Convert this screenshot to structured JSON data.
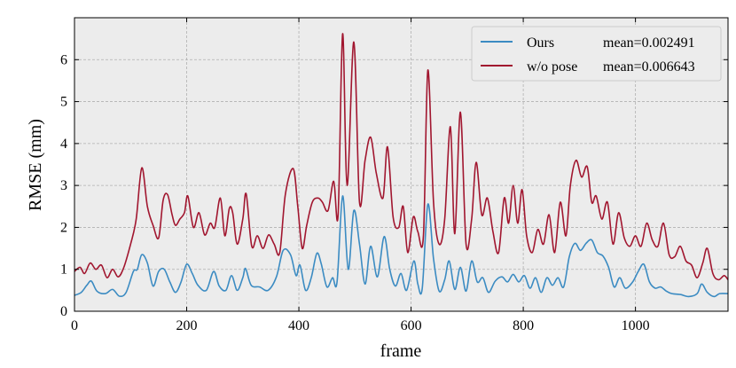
{
  "chart_data": {
    "type": "line",
    "xlabel": "frame",
    "ylabel": "RMSE (mm)",
    "xlim": [
      0,
      1165
    ],
    "ylim": [
      0,
      7
    ],
    "xticks": [
      0,
      200,
      400,
      600,
      800,
      1000
    ],
    "yticks": [
      0,
      1,
      2,
      3,
      4,
      5,
      6
    ],
    "grid": true,
    "legend_position": "top-right",
    "background": "#ececec",
    "series": [
      {
        "name": "Ours",
        "mean_label": "mean=0.002491",
        "color": "#3b8bc2",
        "points": [
          [
            0,
            0.38
          ],
          [
            12,
            0.45
          ],
          [
            22,
            0.62
          ],
          [
            30,
            0.72
          ],
          [
            40,
            0.48
          ],
          [
            55,
            0.42
          ],
          [
            68,
            0.52
          ],
          [
            80,
            0.36
          ],
          [
            92,
            0.45
          ],
          [
            105,
            0.95
          ],
          [
            112,
            1.0
          ],
          [
            120,
            1.35
          ],
          [
            130,
            1.15
          ],
          [
            140,
            0.6
          ],
          [
            150,
            0.95
          ],
          [
            160,
            1.0
          ],
          [
            170,
            0.7
          ],
          [
            180,
            0.45
          ],
          [
            190,
            0.7
          ],
          [
            200,
            1.12
          ],
          [
            210,
            0.9
          ],
          [
            220,
            0.62
          ],
          [
            235,
            0.5
          ],
          [
            248,
            0.95
          ],
          [
            258,
            0.6
          ],
          [
            270,
            0.5
          ],
          [
            280,
            0.85
          ],
          [
            290,
            0.5
          ],
          [
            300,
            0.8
          ],
          [
            305,
            1.02
          ],
          [
            315,
            0.62
          ],
          [
            330,
            0.58
          ],
          [
            345,
            0.5
          ],
          [
            360,
            0.82
          ],
          [
            372,
            1.45
          ],
          [
            385,
            1.35
          ],
          [
            395,
            0.85
          ],
          [
            402,
            1.1
          ],
          [
            412,
            0.5
          ],
          [
            422,
            0.8
          ],
          [
            432,
            1.38
          ],
          [
            440,
            1.12
          ],
          [
            450,
            0.58
          ],
          [
            460,
            0.8
          ],
          [
            468,
            0.7
          ],
          [
            478,
            2.75
          ],
          [
            488,
            1.0
          ],
          [
            498,
            2.4
          ],
          [
            508,
            1.6
          ],
          [
            518,
            0.65
          ],
          [
            528,
            1.55
          ],
          [
            540,
            0.82
          ],
          [
            552,
            1.78
          ],
          [
            562,
            1.0
          ],
          [
            572,
            0.6
          ],
          [
            582,
            0.9
          ],
          [
            592,
            0.5
          ],
          [
            605,
            1.2
          ],
          [
            612,
            0.65
          ],
          [
            620,
            0.55
          ],
          [
            630,
            2.55
          ],
          [
            640,
            1.25
          ],
          [
            650,
            0.48
          ],
          [
            660,
            0.75
          ],
          [
            668,
            1.2
          ],
          [
            678,
            0.52
          ],
          [
            688,
            1.05
          ],
          [
            698,
            0.48
          ],
          [
            708,
            1.2
          ],
          [
            718,
            0.7
          ],
          [
            728,
            0.8
          ],
          [
            738,
            0.45
          ],
          [
            750,
            0.72
          ],
          [
            762,
            0.82
          ],
          [
            772,
            0.7
          ],
          [
            782,
            0.88
          ],
          [
            792,
            0.7
          ],
          [
            802,
            0.85
          ],
          [
            812,
            0.55
          ],
          [
            822,
            0.8
          ],
          [
            832,
            0.45
          ],
          [
            842,
            0.8
          ],
          [
            852,
            0.62
          ],
          [
            862,
            0.8
          ],
          [
            872,
            0.58
          ],
          [
            882,
            1.3
          ],
          [
            892,
            1.62
          ],
          [
            902,
            1.45
          ],
          [
            912,
            1.62
          ],
          [
            922,
            1.7
          ],
          [
            932,
            1.4
          ],
          [
            942,
            1.32
          ],
          [
            952,
            1.05
          ],
          [
            962,
            0.58
          ],
          [
            972,
            0.8
          ],
          [
            982,
            0.55
          ],
          [
            995,
            0.7
          ],
          [
            1005,
            0.95
          ],
          [
            1015,
            1.12
          ],
          [
            1025,
            0.7
          ],
          [
            1035,
            0.55
          ],
          [
            1045,
            0.58
          ],
          [
            1055,
            0.48
          ],
          [
            1065,
            0.42
          ],
          [
            1080,
            0.4
          ],
          [
            1095,
            0.35
          ],
          [
            1110,
            0.42
          ],
          [
            1118,
            0.65
          ],
          [
            1128,
            0.45
          ],
          [
            1140,
            0.35
          ],
          [
            1150,
            0.42
          ],
          [
            1165,
            0.42
          ]
        ]
      },
      {
        "name": "w/o pose",
        "mean_label": "mean=0.006643",
        "color": "#a1162f",
        "points": [
          [
            0,
            0.95
          ],
          [
            10,
            1.05
          ],
          [
            18,
            0.9
          ],
          [
            28,
            1.15
          ],
          [
            38,
            1.0
          ],
          [
            48,
            1.1
          ],
          [
            58,
            0.8
          ],
          [
            68,
            1.0
          ],
          [
            78,
            0.82
          ],
          [
            88,
            1.05
          ],
          [
            100,
            1.6
          ],
          [
            110,
            2.2
          ],
          [
            120,
            3.42
          ],
          [
            130,
            2.5
          ],
          [
            140,
            2.05
          ],
          [
            150,
            1.75
          ],
          [
            158,
            2.65
          ],
          [
            166,
            2.78
          ],
          [
            174,
            2.3
          ],
          [
            180,
            2.05
          ],
          [
            188,
            2.2
          ],
          [
            196,
            2.35
          ],
          [
            202,
            2.75
          ],
          [
            212,
            2.0
          ],
          [
            222,
            2.35
          ],
          [
            232,
            1.82
          ],
          [
            242,
            2.1
          ],
          [
            250,
            2.0
          ],
          [
            260,
            2.7
          ],
          [
            268,
            1.8
          ],
          [
            276,
            2.45
          ],
          [
            282,
            2.35
          ],
          [
            290,
            1.6
          ],
          [
            300,
            2.2
          ],
          [
            306,
            2.8
          ],
          [
            316,
            1.55
          ],
          [
            326,
            1.8
          ],
          [
            336,
            1.5
          ],
          [
            346,
            1.82
          ],
          [
            356,
            1.6
          ],
          [
            366,
            1.4
          ],
          [
            376,
            2.8
          ],
          [
            390,
            3.4
          ],
          [
            398,
            2.5
          ],
          [
            406,
            1.5
          ],
          [
            414,
            2.05
          ],
          [
            424,
            2.6
          ],
          [
            434,
            2.7
          ],
          [
            442,
            2.6
          ],
          [
            452,
            2.4
          ],
          [
            462,
            3.1
          ],
          [
            470,
            2.3
          ],
          [
            478,
            6.62
          ],
          [
            486,
            3.0
          ],
          [
            498,
            6.42
          ],
          [
            508,
            2.6
          ],
          [
            518,
            3.6
          ],
          [
            528,
            4.15
          ],
          [
            538,
            3.3
          ],
          [
            550,
            2.7
          ],
          [
            558,
            3.92
          ],
          [
            568,
            2.25
          ],
          [
            578,
            2.0
          ],
          [
            586,
            2.5
          ],
          [
            594,
            1.4
          ],
          [
            604,
            2.25
          ],
          [
            612,
            1.9
          ],
          [
            622,
            1.8
          ],
          [
            630,
            5.75
          ],
          [
            640,
            2.6
          ],
          [
            650,
            1.6
          ],
          [
            660,
            2.2
          ],
          [
            670,
            4.4
          ],
          [
            678,
            1.85
          ],
          [
            688,
            4.75
          ],
          [
            698,
            1.6
          ],
          [
            708,
            2.2
          ],
          [
            716,
            3.55
          ],
          [
            726,
            2.3
          ],
          [
            736,
            2.7
          ],
          [
            746,
            1.9
          ],
          [
            756,
            1.4
          ],
          [
            766,
            2.7
          ],
          [
            774,
            2.1
          ],
          [
            782,
            3.0
          ],
          [
            790,
            2.1
          ],
          [
            798,
            2.9
          ],
          [
            806,
            1.8
          ],
          [
            816,
            1.4
          ],
          [
            826,
            1.95
          ],
          [
            836,
            1.6
          ],
          [
            846,
            2.3
          ],
          [
            856,
            1.4
          ],
          [
            866,
            2.6
          ],
          [
            876,
            1.8
          ],
          [
            884,
            3.0
          ],
          [
            894,
            3.6
          ],
          [
            904,
            3.2
          ],
          [
            914,
            3.45
          ],
          [
            922,
            2.6
          ],
          [
            930,
            2.75
          ],
          [
            940,
            2.2
          ],
          [
            950,
            2.6
          ],
          [
            960,
            1.6
          ],
          [
            970,
            2.35
          ],
          [
            980,
            1.75
          ],
          [
            990,
            1.55
          ],
          [
            1000,
            1.8
          ],
          [
            1010,
            1.55
          ],
          [
            1020,
            2.1
          ],
          [
            1030,
            1.7
          ],
          [
            1040,
            1.55
          ],
          [
            1050,
            2.1
          ],
          [
            1060,
            1.35
          ],
          [
            1070,
            1.3
          ],
          [
            1080,
            1.55
          ],
          [
            1090,
            1.2
          ],
          [
            1100,
            1.1
          ],
          [
            1110,
            0.8
          ],
          [
            1120,
            1.15
          ],
          [
            1128,
            1.5
          ],
          [
            1138,
            0.9
          ],
          [
            1148,
            0.75
          ],
          [
            1158,
            0.85
          ],
          [
            1165,
            0.75
          ]
        ]
      }
    ]
  }
}
